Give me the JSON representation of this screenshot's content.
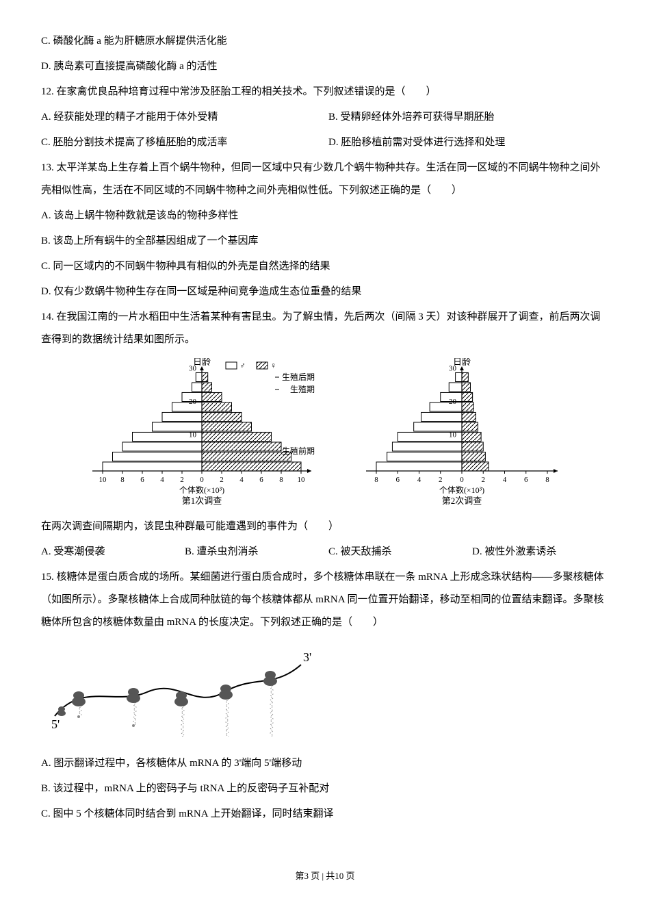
{
  "q11_options": {
    "c": "C. 磷酸化酶 a 能为肝糖原水解提供活化能",
    "d": "D. 胰岛素可直接提高磷酸化酶 a 的活性"
  },
  "q12": {
    "stem": "12. 在家禽优良品种培育过程中常涉及胚胎工程的相关技术。下列叙述错误的是（　　）",
    "a": "A. 经获能处理的精子才能用于体外受精",
    "b": "B. 受精卵经体外培养可获得早期胚胎",
    "c": "C. 胚胎分割技术提高了移植胚胎的成活率",
    "d": "D. 胚胎移植前需对受体进行选择和处理"
  },
  "q13": {
    "stem": "13. 太平洋某岛上生存着上百个蜗牛物种，但同一区域中只有少数几个蜗牛物种共存。生活在同一区域的不同蜗牛物种之间外壳相似性高，生活在不同区域的不同蜗牛物种之间外壳相似性低。下列叙述正确的是（　　）",
    "a": "A. 该岛上蜗牛物种数就是该岛的物种多样性",
    "b": "B. 该岛上所有蜗牛的全部基因组成了一个基因库",
    "c": "C. 同一区域内的不同蜗牛物种具有相似的外壳是自然选择的结果",
    "d": "D. 仅有少数蜗牛物种生存在同一区域是种间竞争造成生态位重叠的结果"
  },
  "q14": {
    "stem1": "14. 在我国江南的一片水稻田中生活着某种有害昆虫。为了解虫情，先后两次（间隔 3 天）对该种群展开了调查，前后两次调查得到的数据统计结果如图所示。",
    "after": "在两次调查间隔期内，该昆虫种群最可能遭遇到的事件为（　　）",
    "a": "A. 受寒潮侵袭",
    "b": "B. 遭杀虫剂消杀",
    "c": "C. 被天敌捕杀",
    "d": "D. 被性外激素诱杀",
    "chart_labels": {
      "ylabel": "日龄",
      "male": "♂",
      "female": "♀",
      "stage_top": "生殖后期",
      "stage_mid": "生殖期",
      "stage_bot": "生殖前期",
      "xlabel1": "个体数(×10³)",
      "caption1": "第1次调查",
      "xlabel2": "个体数(×10³)",
      "caption2": "第2次调查",
      "y_ticks": [
        10,
        20,
        30
      ],
      "x_ticks1": [
        10,
        8,
        6,
        4,
        2,
        0,
        2,
        4,
        6,
        8,
        10
      ],
      "x_ticks2": [
        8,
        6,
        4,
        2,
        0,
        2,
        4,
        6,
        8
      ]
    },
    "chart1": {
      "background": "#ffffff",
      "axis_color": "#000000",
      "male_color": "#ffffff",
      "female_hatch": "#000000",
      "bars": [
        {
          "age": 1,
          "male": 10,
          "female": 10
        },
        {
          "age": 2,
          "male": 9,
          "female": 9
        },
        {
          "age": 3,
          "male": 8,
          "female": 8
        },
        {
          "age": 4,
          "male": 7,
          "female": 7
        },
        {
          "age": 5,
          "male": 5,
          "female": 5
        },
        {
          "age": 6,
          "male": 4,
          "female": 4
        },
        {
          "age": 7,
          "male": 3,
          "female": 3
        },
        {
          "age": 8,
          "male": 2,
          "female": 2
        },
        {
          "age": 9,
          "male": 1,
          "female": 1
        },
        {
          "age": 10,
          "male": 0.6,
          "female": 0.6
        }
      ]
    },
    "chart2": {
      "background": "#ffffff",
      "axis_color": "#000000",
      "bars": [
        {
          "age": 1,
          "male": 8,
          "female": 2.5
        },
        {
          "age": 2,
          "male": 7,
          "female": 2.2
        },
        {
          "age": 3,
          "male": 6.5,
          "female": 2
        },
        {
          "age": 4,
          "male": 6,
          "female": 1.8
        },
        {
          "age": 5,
          "male": 4.5,
          "female": 1.5
        },
        {
          "age": 6,
          "male": 3.8,
          "female": 1.3
        },
        {
          "age": 7,
          "male": 3,
          "female": 1.1
        },
        {
          "age": 8,
          "male": 2,
          "female": 1
        },
        {
          "age": 9,
          "male": 1.2,
          "female": 0.8
        },
        {
          "age": 10,
          "male": 0.6,
          "female": 0.6
        }
      ]
    }
  },
  "q15": {
    "stem": "15. 核糖体是蛋白质合成的场所。某细菌进行蛋白质合成时，多个核糖体串联在一条 mRNA 上形成念珠状结构——多聚核糖体（如图所示）。多聚核糖体上合成同种肽链的每个核糖体都从 mRNA 同一位置开始翻译，移动至相同的位置结束翻译。多聚核糖体所包含的核糖体数量由 mRNA 的长度决定。下列叙述正确的是（　　）",
    "a": "A. 图示翻译过程中，各核糖体从 mRNA 的 3'端向 5'端移动",
    "b": "B. 该过程中，mRNA 上的密码子与 tRNA 上的反密码子互补配对",
    "c": "C. 图中 5 个核糖体同时结合到 mRNA 上开始翻译，同时结束翻译",
    "figure": {
      "label_5prime": "5'",
      "label_3prime": "3'",
      "ribosome_color": "#555555",
      "mrna_color": "#000000",
      "chain_color": "#888888"
    }
  },
  "footer": "第3 页 | 共10 页"
}
